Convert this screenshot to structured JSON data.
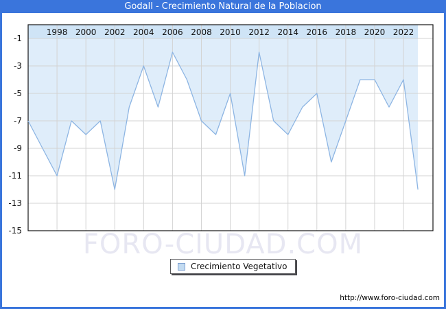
{
  "window": {
    "title": "Godall - Crecimiento Natural de la Poblacion",
    "frame_color": "#3a75dc"
  },
  "chart_data": {
    "type": "area",
    "title": "Godall - Crecimiento Natural de la Poblacion",
    "x": [
      1996,
      1997,
      1998,
      1999,
      2000,
      2001,
      2002,
      2003,
      2004,
      2005,
      2006,
      2007,
      2008,
      2009,
      2010,
      2011,
      2012,
      2013,
      2014,
      2015,
      2016,
      2017,
      2018,
      2019,
      2020,
      2021,
      2022,
      2023
    ],
    "series": [
      {
        "name": "Crecimiento Vegetativo",
        "values": [
          -7,
          -9,
          -11,
          -7,
          -8,
          -7,
          -12,
          -6,
          -3,
          -6,
          -2,
          -4,
          -7,
          -8,
          -5,
          -11,
          -2,
          -7,
          -8,
          -6,
          -5,
          -10,
          -7,
          -4,
          -4,
          -6,
          -4,
          -12
        ]
      }
    ],
    "x_tick_labels": [
      1998,
      2000,
      2002,
      2004,
      2006,
      2008,
      2010,
      2012,
      2014,
      2016,
      2018,
      2020,
      2022
    ],
    "y_ticks": [
      -1,
      -3,
      -5,
      -7,
      -9,
      -11,
      -13,
      -15
    ],
    "ylim": [
      -15,
      0
    ],
    "grid": true,
    "legend_position": "bottom-center",
    "colors": {
      "area_fill": "#dfedfa",
      "top_band": "#cfe4f6",
      "line": "#8db5e3",
      "gridline": "#d3d3d3",
      "plot_border": "#141414"
    }
  },
  "legend": {
    "label": "Crecimiento Vegetativo"
  },
  "watermark": {
    "text": "FORO-CIUDAD.COM"
  },
  "footer": {
    "url": "http://www.foro-ciudad.com"
  }
}
